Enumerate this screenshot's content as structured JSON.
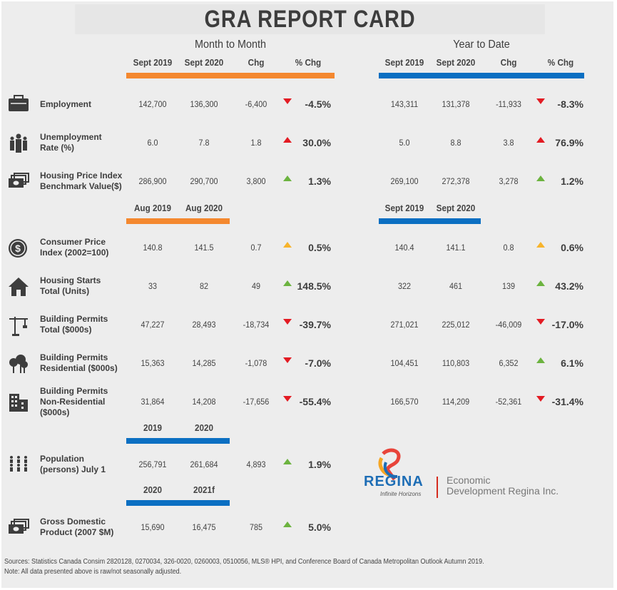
{
  "title": "GRA REPORT CARD",
  "colors": {
    "orange": "#f4882f",
    "blue": "#0b6fc2",
    "down": "#e31b23",
    "up_bad": "#e31b23",
    "up_good": "#6cb33f",
    "neutral": "#f7b42c"
  },
  "sections": {
    "mtm": "Month to Month",
    "ytd": "Year to Date"
  },
  "headers": {
    "main_mtm": [
      "Sept 2019",
      "Sept 2020",
      "Chg",
      "% Chg"
    ],
    "main_ytd": [
      "Sept 2019",
      "Sept 2020",
      "Chg",
      "% Chg"
    ],
    "aug_mtm": [
      "Aug 2019",
      "Aug 2020"
    ],
    "aug_ytd": [
      "Sept 2019",
      "Sept 2020"
    ],
    "pop": [
      "2019",
      "2020"
    ],
    "gdp": [
      "2020",
      "2021f"
    ]
  },
  "rows": [
    {
      "icon": "briefcase-icon",
      "label": [
        "Employment"
      ],
      "mtm": [
        "142,700",
        "136,300",
        "-6,400",
        "-4.5%"
      ],
      "mtm_dir": "down",
      "ytd": [
        "143,311",
        "131,378",
        "-11,933",
        "-8.3%"
      ],
      "ytd_dir": "down"
    },
    {
      "icon": "people-icon",
      "label": [
        "Unemployment",
        "Rate (%)"
      ],
      "mtm": [
        "6.0",
        "7.8",
        "1.8",
        "30.0%"
      ],
      "mtm_dir": "up_bad",
      "ytd": [
        "5.0",
        "8.8",
        "3.8",
        "76.9%"
      ],
      "ytd_dir": "up_bad"
    },
    {
      "icon": "money-icon",
      "label": [
        "Housing Price Index",
        "Benchmark Value($)"
      ],
      "mtm": [
        "286,900",
        "290,700",
        "3,800",
        "1.3%"
      ],
      "mtm_dir": "up_good",
      "ytd": [
        "269,100",
        "272,378",
        "3,278",
        "1.2%"
      ],
      "ytd_dir": "up_good"
    },
    {
      "icon": "dollar-coin-icon",
      "label": [
        "Consumer Price",
        "Index (2002=100)"
      ],
      "mtm": [
        "140.8",
        "141.5",
        "0.7",
        "0.5%"
      ],
      "mtm_dir": "neutral",
      "ytd": [
        "140.4",
        "141.1",
        "0.8",
        "0.6%"
      ],
      "ytd_dir": "neutral"
    },
    {
      "icon": "house-icon",
      "label": [
        "Housing Starts",
        "Total (Units)"
      ],
      "mtm": [
        "33",
        "82",
        "49",
        "148.5%"
      ],
      "mtm_dir": "up_good",
      "ytd": [
        "322",
        "461",
        "139",
        "43.2%"
      ],
      "ytd_dir": "up_good"
    },
    {
      "icon": "crane-icon",
      "label": [
        "Building Permits",
        "Total ($000s)"
      ],
      "mtm": [
        "47,227",
        "28,493",
        "-18,734",
        "-39.7%"
      ],
      "mtm_dir": "down",
      "ytd": [
        "271,021",
        "225,012",
        "-46,009",
        "-17.0%"
      ],
      "ytd_dir": "down"
    },
    {
      "icon": "trees-icon",
      "label": [
        "Building Permits",
        "Residential ($000s)"
      ],
      "mtm": [
        "15,363",
        "14,285",
        "-1,078",
        "-7.0%"
      ],
      "mtm_dir": "down",
      "ytd": [
        "104,451",
        "110,803",
        "6,352",
        "6.1%"
      ],
      "ytd_dir": "up_good"
    },
    {
      "icon": "office-building-icon",
      "label": [
        "Building Permits",
        "Non-Residential",
        "($000s)"
      ],
      "mtm": [
        "31,864",
        "14,208",
        "-17,656",
        "-55.4%"
      ],
      "mtm_dir": "down",
      "ytd": [
        "166,570",
        "114,209",
        "-52,361",
        "-31.4%"
      ],
      "ytd_dir": "down"
    },
    {
      "icon": "population-icon",
      "label": [
        "Population",
        "(persons) July 1"
      ],
      "mtm": [
        "256,791",
        "261,684",
        "4,893",
        "1.9%"
      ],
      "mtm_dir": "up_good"
    },
    {
      "icon": "money-icon",
      "label": [
        "Gross Domestic",
        "Product (2007 $M)"
      ],
      "mtm": [
        "15,690",
        "16,475",
        "785",
        "5.0%"
      ],
      "mtm_dir": "up_good"
    }
  ],
  "logo": {
    "name": "REGINA",
    "tagline": "Infinite Horizons",
    "org_line1": "Economic",
    "org_line2": "Development Regina Inc."
  },
  "footer": {
    "sources": "Sources: Statistics Canada Consim 2820128, 0270034, 326-0020, 0260003, 0510056, MLS® HPI, and Conference Board of Canada Metropolitan Outlook Autumn 2019.",
    "note": "Note: All data presented above is raw/not seasonally adjusted."
  }
}
